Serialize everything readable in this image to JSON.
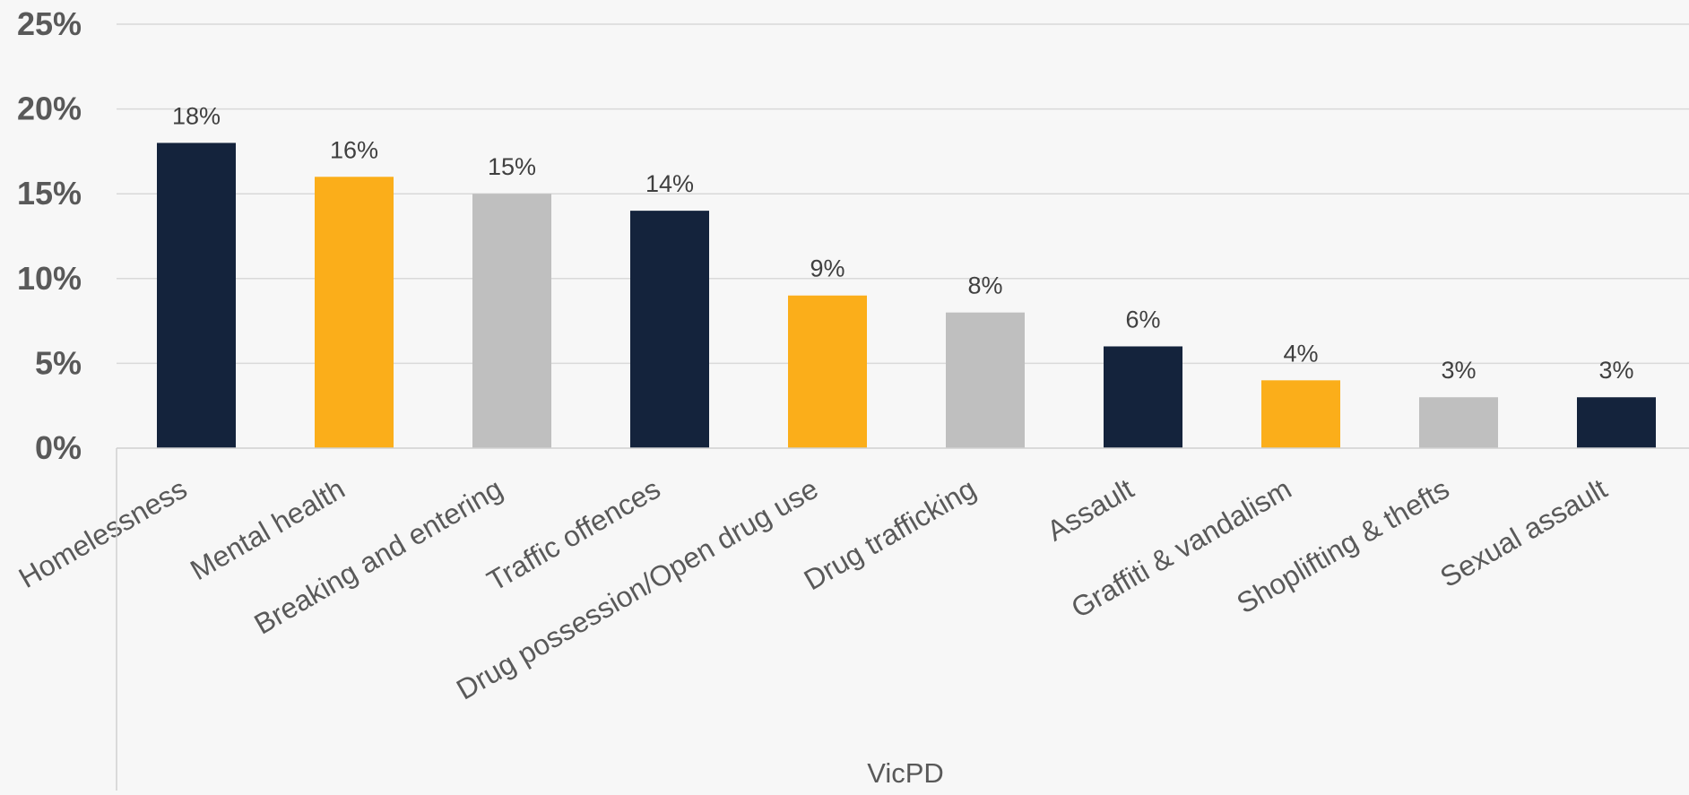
{
  "chart_data": {
    "type": "bar",
    "categories": [
      "Homelessness",
      "Mental health",
      "Breaking and entering",
      "Traffic offences",
      "Drug possession/Open drug use",
      "Drug trafficking",
      "Assault",
      "Graffiti & vandalism",
      "Shoplifting & thefts",
      "Sexual assault"
    ],
    "values": [
      18,
      16,
      15,
      14,
      9,
      8,
      6,
      4,
      3,
      3
    ],
    "data_labels": [
      "18%",
      "16%",
      "15%",
      "14%",
      "9%",
      "8%",
      "6%",
      "4%",
      "3%",
      "3%"
    ],
    "group_label": "VicPD",
    "ylim": [
      0,
      25
    ],
    "yticks": [
      0,
      5,
      10,
      15,
      20,
      25
    ],
    "ytick_labels": [
      "0%",
      "5%",
      "10%",
      "15%",
      "20%",
      "25%"
    ],
    "grid": true,
    "legend": "none",
    "colors": {
      "navy": "#14233c",
      "gold": "#fbae1a",
      "gray": "#bfbfbf",
      "grid": "#d9d9d9",
      "background": "#f7f7f7"
    },
    "bar_color_cycle": [
      "navy",
      "gold",
      "gray"
    ]
  }
}
